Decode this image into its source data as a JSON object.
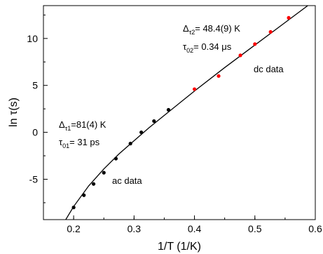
{
  "chart_data": {
    "type": "scatter",
    "xlabel": "1/T (1/K)",
    "ylabel": "ln τ(s)",
    "xlim": [
      0.15,
      0.6
    ],
    "ylim": [
      -9.3,
      13.5
    ],
    "x_ticks": [
      0.2,
      0.3,
      0.4,
      0.5,
      0.6
    ],
    "x_tick_labels": [
      "0.2",
      "0.3",
      "0.4",
      "0.5",
      "0.6"
    ],
    "y_ticks": [
      -5,
      0,
      5,
      10
    ],
    "y_tick_labels": [
      "-5",
      "0",
      "5",
      "10"
    ],
    "grid": false,
    "legend": "none",
    "series": [
      {
        "name": "ac data",
        "color": "#000000",
        "marker": "circle",
        "x": [
          0.2,
          0.217,
          0.233,
          0.25,
          0.27,
          0.294,
          0.312,
          0.333,
          0.357
        ],
        "y": [
          -8.0,
          -6.7,
          -5.5,
          -4.3,
          -2.8,
          -1.2,
          0.0,
          1.2,
          2.4
        ]
      },
      {
        "name": "dc data",
        "color": "#ff0000",
        "marker": "circle",
        "x": [
          0.4,
          0.44,
          0.476,
          0.5,
          0.526,
          0.556
        ],
        "y": [
          4.6,
          6.0,
          8.2,
          9.4,
          10.7,
          12.2
        ]
      }
    ],
    "fit_curve": {
      "color": "#000000",
      "x": [
        0.185,
        0.2,
        0.225,
        0.25,
        0.275,
        0.3,
        0.325,
        0.35,
        0.4,
        0.45,
        0.5,
        0.55,
        0.6
      ],
      "y": [
        -9.5,
        -7.9,
        -5.7,
        -3.9,
        -2.3,
        -0.9,
        0.5,
        1.8,
        4.4,
        6.9,
        9.3,
        11.7,
        14.1
      ]
    },
    "annotations": [
      {
        "id": "delta1",
        "main": "Δ",
        "sub": "τ1",
        "rest": "=81(4) K",
        "color": "#000000"
      },
      {
        "id": "tau1",
        "main": "τ",
        "sub": "01",
        "rest": "= 31 ps",
        "color": "#000000"
      },
      {
        "id": "delta2",
        "main": "Δ",
        "sub": "τ2",
        "rest": "= 48.4(9) K",
        "color": "#000000"
      },
      {
        "id": "tau2",
        "main": "τ",
        "sub": "02",
        "rest": "= 0.34 μs",
        "color": "#000000"
      },
      {
        "id": "ac_label",
        "text": "ac data",
        "color": "#000000"
      },
      {
        "id": "dc_label",
        "text": "dc data",
        "color": "#ff0000"
      }
    ]
  }
}
